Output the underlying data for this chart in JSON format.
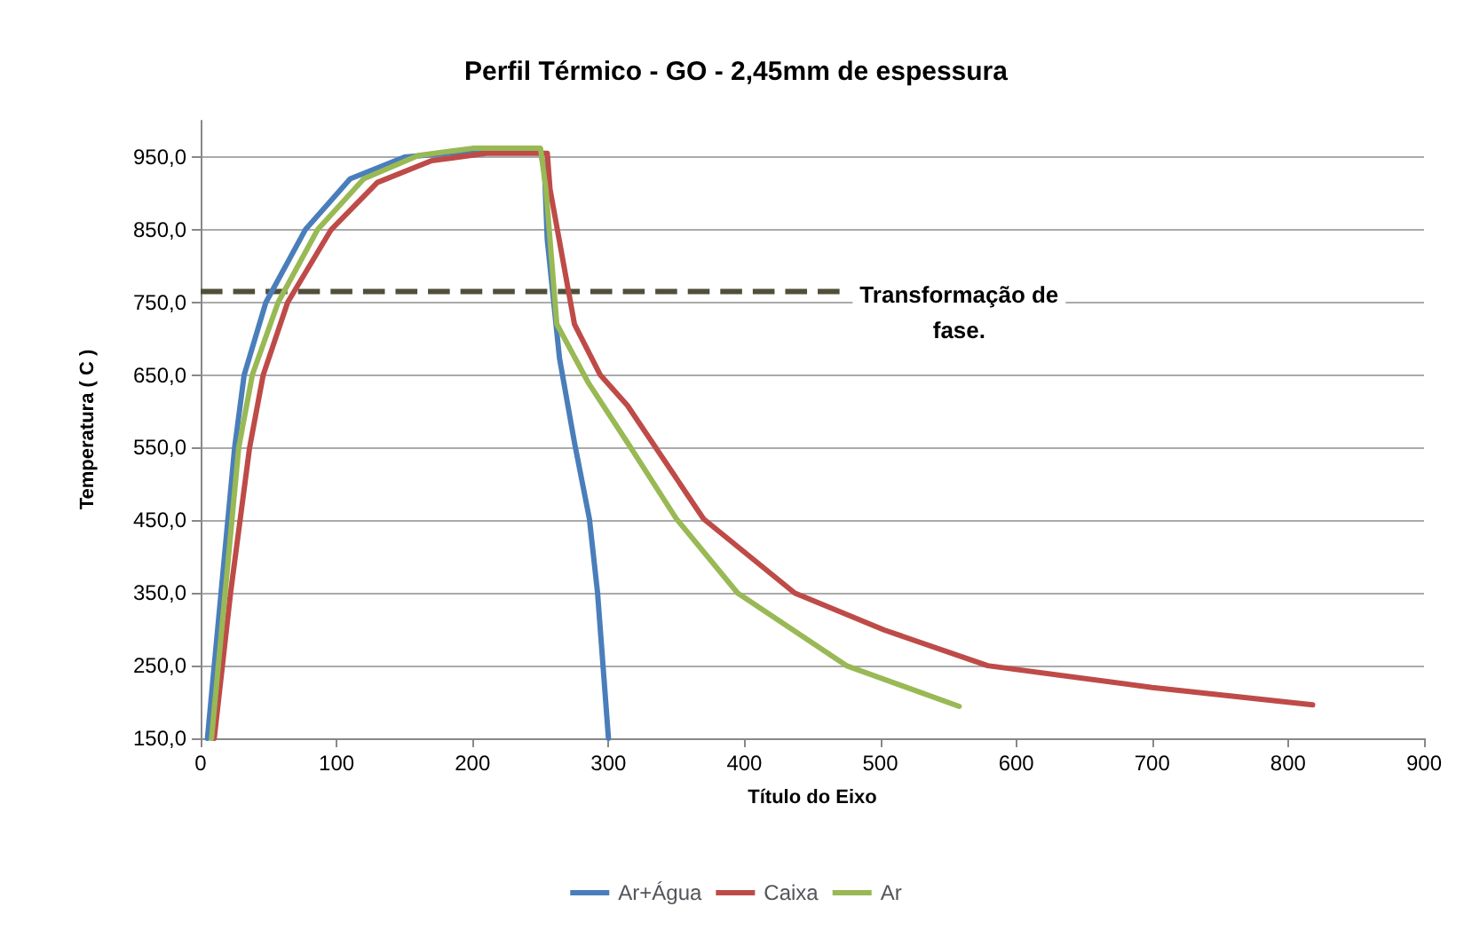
{
  "chart_data": {
    "type": "line",
    "title": "Perfil Térmico - GO - 2,45mm de espessura",
    "xlabel": "Título do Eixo",
    "ylabel": "Temperatura ( C )",
    "xlim": [
      0,
      900
    ],
    "xticks": [
      0,
      100,
      200,
      300,
      400,
      500,
      600,
      700,
      800,
      900
    ],
    "ylim": [
      150,
      1000
    ],
    "yticks": [
      {
        "value": 150,
        "label": "150,0"
      },
      {
        "value": 250,
        "label": "250,0"
      },
      {
        "value": 350,
        "label": "350,0"
      },
      {
        "value": 450,
        "label": "450,0"
      },
      {
        "value": 550,
        "label": "550,0"
      },
      {
        "value": 650,
        "label": "650,0"
      },
      {
        "value": 750,
        "label": "750,0"
      },
      {
        "value": 850,
        "label": "850,0"
      },
      {
        "value": 950,
        "label": "950,0"
      }
    ],
    "grid": "y",
    "legend": "bottom",
    "marker": "none",
    "series": [
      {
        "name": "Ar+Água",
        "color": "#4a7ebb",
        "x": [
          5,
          15,
          25,
          32,
          48,
          77,
          110,
          150,
          200,
          250,
          253,
          255,
          264,
          275,
          286,
          292,
          300
        ],
        "values": [
          150,
          350,
          550,
          650,
          750,
          850,
          920,
          950,
          958,
          958,
          930,
          836,
          673,
          557,
          452,
          350,
          150
        ]
      },
      {
        "name": "Caixa",
        "color": "#be4b48",
        "x": [
          10,
          22,
          36,
          46,
          64,
          96,
          130,
          170,
          210,
          255,
          257,
          275,
          294,
          314,
          370,
          437,
          503,
          579,
          700,
          818
        ],
        "values": [
          150,
          350,
          550,
          650,
          750,
          850,
          915,
          945,
          955,
          955,
          906,
          720,
          650,
          608,
          452,
          350,
          299,
          250,
          220,
          196
        ]
      },
      {
        "name": "Ar",
        "color": "#98b954",
        "x": [
          8,
          18,
          28,
          38,
          57,
          86,
          120,
          160,
          200,
          250,
          254,
          262,
          285,
          314,
          350,
          395,
          475,
          558
        ],
        "values": [
          150,
          350,
          550,
          650,
          750,
          850,
          920,
          952,
          962,
          962,
          906,
          720,
          640,
          557,
          452,
          350,
          250,
          194
        ]
      },
      {
        "type": "line",
        "color": "#4f4f3a",
        "line_style": "dashed",
        "x": [
          0,
          470
        ],
        "values": [
          765,
          765
        ]
      }
    ],
    "annotations": [
      "Transformação de\nfase."
    ]
  }
}
